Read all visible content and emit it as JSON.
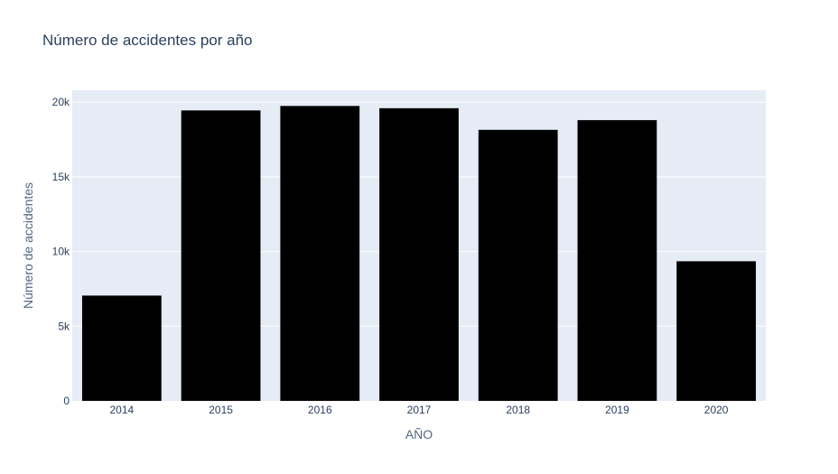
{
  "chart_data": {
    "type": "bar",
    "title": "Número de accidentes por año",
    "xlabel": "AÑO",
    "ylabel": "Número de accidentes",
    "categories": [
      "2014",
      "2015",
      "2016",
      "2017",
      "2018",
      "2019",
      "2020"
    ],
    "values": [
      7050,
      19450,
      19750,
      19600,
      18150,
      18800,
      9350
    ],
    "ylim": [
      0,
      20800
    ],
    "yticks": [
      0,
      5000,
      10000,
      15000,
      20000
    ],
    "ytick_labels": [
      "0",
      "5k",
      "10k",
      "15k",
      "20k"
    ],
    "grid": true,
    "legend": "none",
    "colors": {
      "bar": "#000000",
      "plot_bg": "#e5ecf6",
      "grid": "#ffffff",
      "text": "#2a3f5f"
    }
  }
}
